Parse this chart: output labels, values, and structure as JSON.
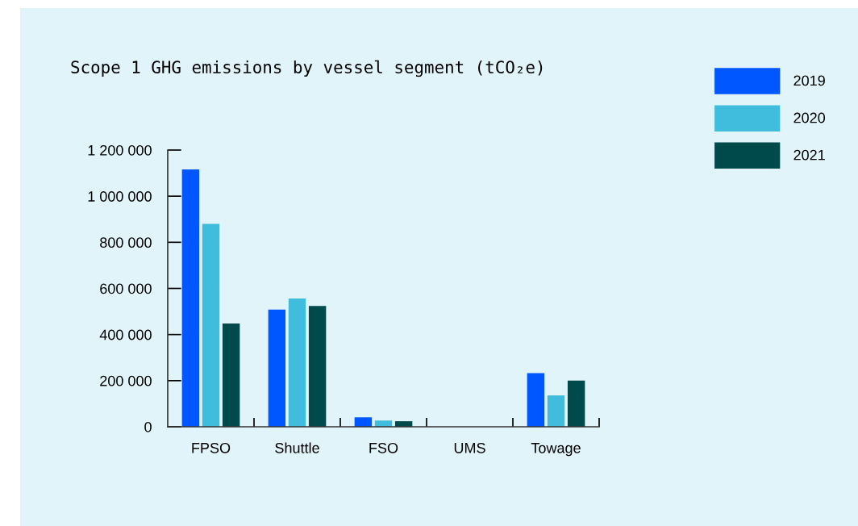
{
  "chart_data": {
    "type": "bar",
    "title": "Scope 1 GHG emissions by vessel segment (tCO₂e)",
    "categories": [
      "FPSO",
      "Shuttle",
      "FSO",
      "UMS",
      "Towage"
    ],
    "series": [
      {
        "name": "2019",
        "color": "#0057ff",
        "values": [
          1116000,
          508000,
          41000,
          0,
          233000
        ]
      },
      {
        "name": "2020",
        "color": "#40bddc",
        "values": [
          880000,
          556000,
          27000,
          0,
          136000
        ]
      },
      {
        "name": "2021",
        "color": "#004a4c",
        "values": [
          448000,
          524000,
          24000,
          0,
          200000
        ]
      }
    ],
    "ylim": [
      0,
      1200000
    ],
    "yticks": [
      {
        "value": 0,
        "label": "0"
      },
      {
        "value": 200000,
        "label": "200 000"
      },
      {
        "value": 400000,
        "label": "400 000"
      },
      {
        "value": 600000,
        "label": "600 000"
      },
      {
        "value": 800000,
        "label": "800 000"
      },
      {
        "value": 1000000,
        "label": "1 000 000"
      },
      {
        "value": 1200000,
        "label": "1 200 000"
      }
    ],
    "grid": false,
    "legend": "top right"
  }
}
